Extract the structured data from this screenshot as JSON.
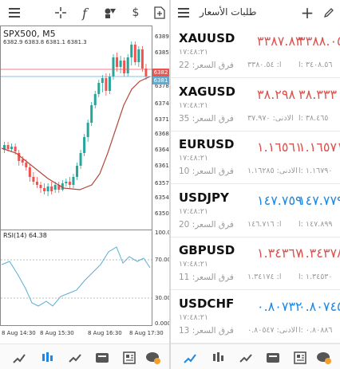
{
  "left_panel": {
    "chart_title": "SPX500, M5",
    "ohlc": "6382.9 6383.8 6381.1 6381.3",
    "indicator_label": "RSI(14) 64.38",
    "price_ticks": [
      "6389.",
      "6385.",
      "6382",
      "6381",
      "6378.",
      "6374.",
      "6371.",
      "6368.",
      "6364.",
      "6361.",
      "6357.",
      "6354.",
      "6350."
    ],
    "rsi_ticks": [
      "100.0",
      "70.00",
      "30.00",
      "0.000"
    ],
    "time_ticks": [
      "8 Aug 14:30",
      "8 Aug 15:30",
      "8 Aug 16:30",
      "8 Aug 17:30"
    ],
    "current_bid_label": "6382",
    "current_ask_label": "6381",
    "colors": {
      "bull": "#26a69a",
      "bear": "#ef5350",
      "ma": "#b3493a",
      "rsi": "#5aaed6",
      "level_red": "#ef5350",
      "level_blue": "#5aaed6"
    }
  },
  "right_panel": {
    "title": "طلبات الأسعار",
    "quotes": [
      {
        "symbol": "XAUUSD",
        "time": "١٧:٤٨:٢١",
        "spread": "فرق السعر: 22",
        "bid": "٣٣٨٧.٨٣",
        "ask": "٣٣٨٨.٠٥",
        "low": "ا: ٣٣٨٠.٥٤",
        "high": "٣٤٠٨.٥٦ :ا",
        "color": "#d9534f"
      },
      {
        "symbol": "XAGUSD",
        "time": "١٧:٤٨:٢١",
        "spread": "فرق السعر: 35",
        "bid": "٣٨.٢٩٨",
        "ask": "٣٨.٣٣٣",
        "low": "الادنى: ٣٧.٩٧٠",
        "high": "٣٨.٤٦٥ :ا",
        "color": "#d9534f"
      },
      {
        "symbol": "EURUSD",
        "time": "١٧:٤٨:٢١",
        "spread": "فرق السعر: 10",
        "bid": "١.١٦٥٦١",
        "ask": "١.١٦٥٧١",
        "low": "الادنى: ١.١٦٢٨٥",
        "high": "١.١٦٧٩٠ :ا",
        "color": "#d9534f"
      },
      {
        "symbol": "USDJPY",
        "time": "١٧:٤٨:٢١",
        "spread": "فرق السعر: 20",
        "bid": "١٤٧.٧٥٩",
        "ask": "١٤٧.٧٧٩",
        "low": "ا: ١٤٦.٧١٦",
        "high": "١٤٧.٨٩٩ :ا",
        "color": "#1e88e5"
      },
      {
        "symbol": "GBPUSD",
        "time": "١٧:٤٨:٢١",
        "spread": "فرق السعر: 11",
        "bid": "١.٣٤٣٦٧",
        "ask": "١.٣٤٣٧٨",
        "low": "ا: ١.٣٤١٧٤",
        "high": "١.٣٤٥٣٠ :ا",
        "color": "#d9534f"
      },
      {
        "symbol": "USDCHF",
        "time": "١٧:٤٨:٢١",
        "spread": "فرق السعر: 13",
        "bid": "٠.٨٠٧٣٢",
        "ask": "٠.٨٠٧٤٥",
        "low": "الادنى: ٠.٨٠٥٤٧",
        "high": "٠.٨٠٨٨٦ :ا",
        "color": "#1e88e5"
      }
    ]
  },
  "icons": {
    "left_top": [
      "crosshair-icon",
      "function-icon",
      "objects-icon",
      "trade-icon",
      "add-file-icon"
    ],
    "right_top": [
      "menu-icon",
      "add-icon",
      "edit-icon"
    ],
    "bottom": [
      "quotes-icon",
      "chart-icon",
      "trade-icon",
      "history-icon",
      "news-icon",
      "messages-icon"
    ]
  }
}
